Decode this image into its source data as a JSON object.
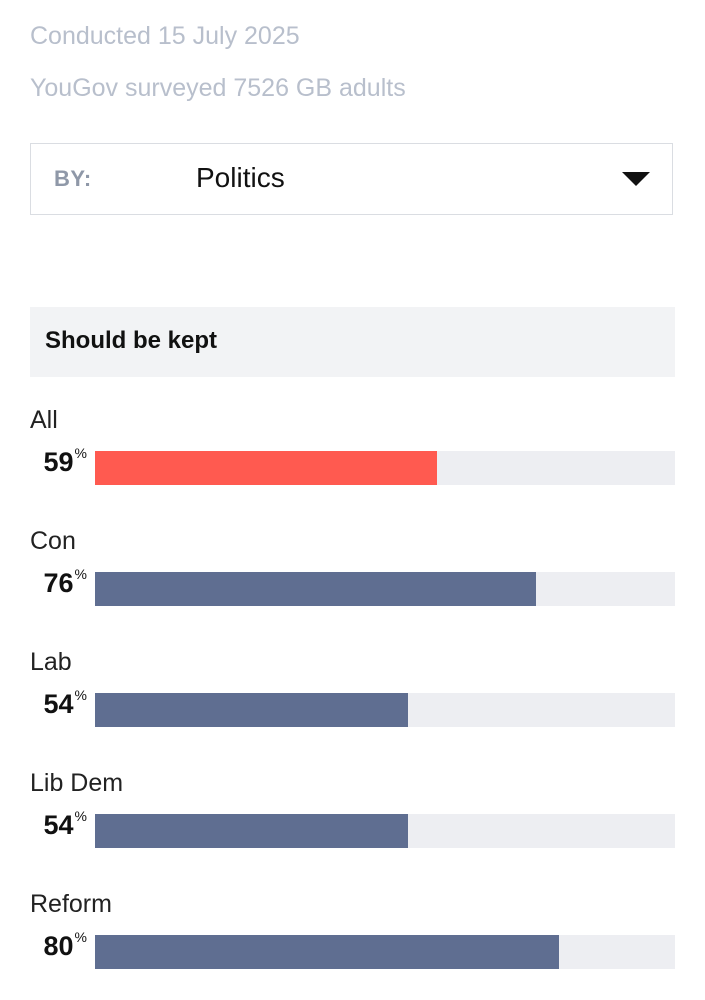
{
  "meta": {
    "conducted": "Conducted 15 July 2025",
    "surveyed": "YouGov surveyed 7526 GB adults"
  },
  "filter": {
    "label": "BY:",
    "value": "Politics",
    "icon": "caret-down-icon"
  },
  "colors": {
    "highlight": "#ff5a50",
    "default": "#5f6e91",
    "track": "#edeef2"
  },
  "chart_data": {
    "type": "bar",
    "orientation": "horizontal",
    "title": "Should be kept",
    "unit": "%",
    "xlim": [
      0,
      100
    ],
    "categories": [
      "All",
      "Con",
      "Lab",
      "Lib Dem",
      "Reform"
    ],
    "values": [
      59,
      76,
      54,
      54,
      80
    ],
    "highlight_category": "All"
  }
}
